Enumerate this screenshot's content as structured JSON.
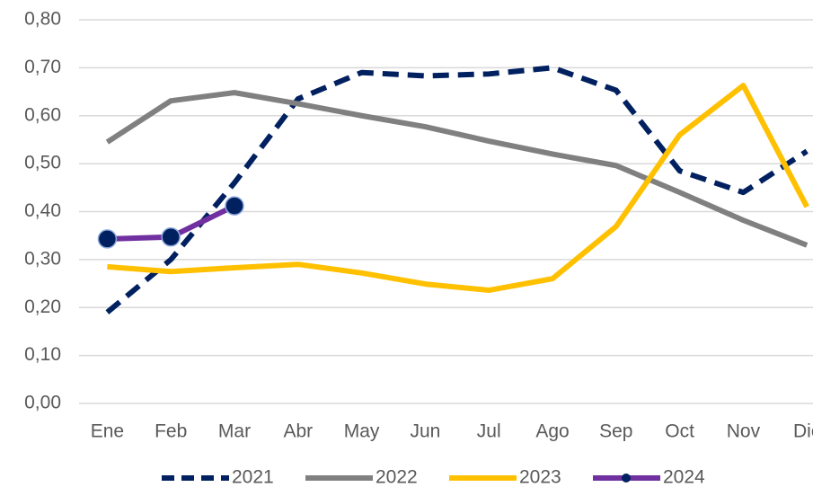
{
  "chart_data": {
    "type": "line",
    "categories": [
      "Ene",
      "Feb",
      "Mar",
      "Abr",
      "May",
      "Jun",
      "Jul",
      "Ago",
      "Sep",
      "Oct",
      "Nov",
      "Dic"
    ],
    "series": [
      {
        "name": "2021",
        "color": "#002060",
        "style": "dashed",
        "values": [
          0.19,
          0.3,
          0.46,
          0.635,
          0.69,
          0.683,
          0.687,
          0.7,
          0.653,
          0.485,
          0.44,
          0.526
        ]
      },
      {
        "name": "2022",
        "color": "#808080",
        "style": "solid",
        "values": [
          0.545,
          0.631,
          0.648,
          0.625,
          0.6,
          0.577,
          0.547,
          0.52,
          0.496,
          0.44,
          0.382,
          0.33
        ]
      },
      {
        "name": "2023",
        "color": "#ffc000",
        "style": "solid",
        "values": [
          0.285,
          0.275,
          0.283,
          0.29,
          0.272,
          0.249,
          0.236,
          0.26,
          0.369,
          0.56,
          0.663,
          0.41
        ]
      },
      {
        "name": "2024",
        "color": "#7030a0",
        "style": "solid",
        "marker": true,
        "marker_color": "#002060",
        "values": [
          0.343,
          0.347,
          0.412,
          null,
          null,
          null,
          null,
          null,
          null,
          null,
          null,
          null
        ]
      }
    ],
    "ylim": [
      0,
      0.8
    ],
    "yticks": [
      {
        "value": 0,
        "label": "0,00"
      },
      {
        "value": 0.1,
        "label": "0,10"
      },
      {
        "value": 0.2,
        "label": "0,20"
      },
      {
        "value": 0.3,
        "label": "0,30"
      },
      {
        "value": 0.4,
        "label": "0,40"
      },
      {
        "value": 0.5,
        "label": "0,50"
      },
      {
        "value": 0.6,
        "label": "0,60"
      },
      {
        "value": 0.7,
        "label": "0,70"
      },
      {
        "value": 0.8,
        "label": "0,80"
      }
    ],
    "grid": true,
    "legend": "bottom"
  }
}
